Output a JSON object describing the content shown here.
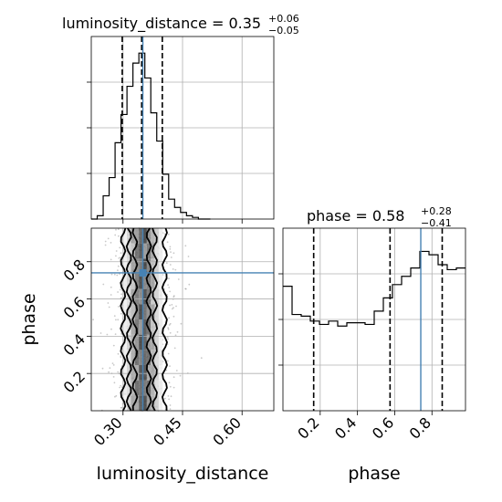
{
  "chart_data": {
    "type": "corner",
    "parameters": [
      "luminosity_distance",
      "phase"
    ],
    "titles": [
      {
        "label": "luminosity_distance",
        "median": "0.35",
        "plus": "+0.06",
        "minus": "−0.05"
      },
      {
        "label": "phase",
        "median": "0.58",
        "plus": "+0.28",
        "minus": "−0.41"
      }
    ],
    "truths": {
      "luminosity_distance": 0.35,
      "phase": 0.74
    },
    "quantiles": {
      "luminosity_distance": [
        0.298,
        0.347,
        0.399
      ],
      "phase": [
        0.165,
        0.575,
        0.855
      ]
    },
    "ranges": {
      "luminosity_distance": [
        0.22,
        0.68
      ],
      "phase": [
        0.0,
        0.98
      ]
    },
    "ticks": {
      "luminosity_distance": [
        0.3,
        0.45,
        0.6
      ],
      "phase": [
        0.2,
        0.4,
        0.6,
        0.8
      ]
    },
    "tick_labels": {
      "luminosity_distance": [
        "0.30",
        "0.45",
        "0.60"
      ],
      "phase": [
        "0.2",
        "0.4",
        "0.6",
        "0.8"
      ]
    },
    "hist_luminosity_distance": {
      "edges": [
        0.22,
        0.235,
        0.25,
        0.265,
        0.28,
        0.295,
        0.31,
        0.325,
        0.34,
        0.355,
        0.37,
        0.385,
        0.4,
        0.415,
        0.43,
        0.445,
        0.46,
        0.475,
        0.49,
        0.505,
        0.52
      ],
      "counts": [
        0.0,
        0.02,
        0.14,
        0.25,
        0.46,
        0.63,
        0.8,
        0.94,
        1.0,
        0.85,
        0.64,
        0.47,
        0.27,
        0.12,
        0.07,
        0.04,
        0.02,
        0.01,
        0.0,
        0.0
      ]
    },
    "hist_phase": {
      "edges": [
        0.0,
        0.049,
        0.098,
        0.147,
        0.196,
        0.245,
        0.294,
        0.343,
        0.392,
        0.441,
        0.49,
        0.539,
        0.588,
        0.637,
        0.686,
        0.735,
        0.784,
        0.833,
        0.882,
        0.931,
        0.98
      ],
      "counts": [
        0.75,
        0.58,
        0.57,
        0.54,
        0.52,
        0.54,
        0.51,
        0.53,
        0.53,
        0.52,
        0.6,
        0.68,
        0.76,
        0.81,
        0.86,
        0.96,
        0.94,
        0.88,
        0.85,
        0.86
      ]
    },
    "hist_ylim": [
      0,
      1.1
    ],
    "contours_2d": {
      "levels_luminosity_distance_bounds": [
        {
          "outer": [
            0.3,
            0.405
          ]
        },
        {
          "outer": [
            0.315,
            0.38
          ]
        },
        {
          "outer": [
            0.33,
            0.365
          ]
        }
      ]
    }
  }
}
